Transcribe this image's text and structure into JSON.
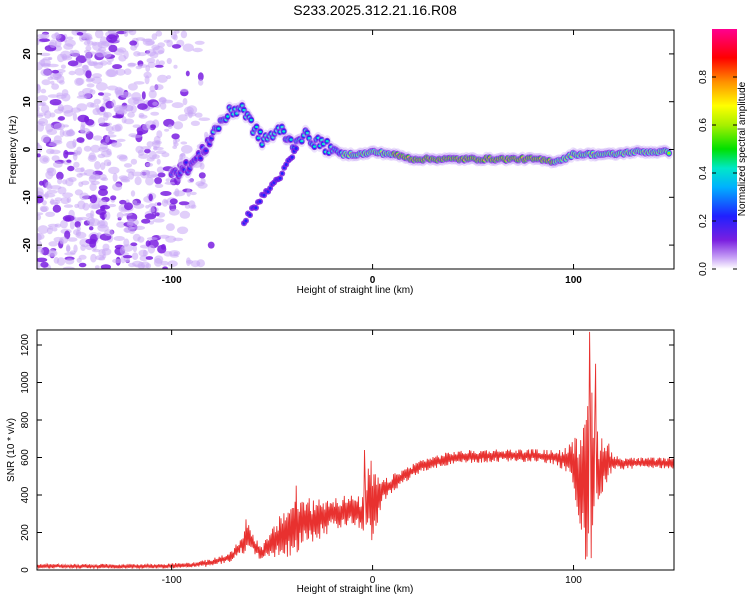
{
  "title": "S233.2025.312.21.16.R08",
  "colors": {
    "signal": "#e8312f",
    "scatter": "#8a2be2",
    "frame": "#000000"
  },
  "chart_data": [
    {
      "type": "heatmap",
      "title": "S233.2025.312.21.16.R08",
      "xlabel": "Height of straight line (km)",
      "ylabel": "Frequency (Hz)",
      "xlim": [
        -167,
        150
      ],
      "ylim": [
        -25,
        25
      ],
      "xticks": [
        -100,
        0,
        100
      ],
      "yticks": [
        -20,
        -10,
        0,
        10,
        20
      ],
      "colorbar": {
        "label": "Normalized spectral amplitude",
        "range": [
          0,
          1
        ],
        "ticks": [
          0.0,
          0.2,
          0.4,
          0.6,
          0.8
        ],
        "colormap": "hsv-rainbow (violet to magenta)"
      },
      "ridge": {
        "x": [
          -100,
          -95,
          -90,
          -85,
          -80,
          -75,
          -70,
          -65,
          -60,
          -55,
          -50,
          -45,
          -40,
          -35,
          -30,
          -25,
          -20,
          -15,
          -10,
          -5,
          0,
          10,
          20,
          30,
          40,
          50,
          60,
          70,
          80,
          90,
          95,
          100,
          105,
          110,
          120,
          130,
          140,
          148
        ],
        "y": [
          -4,
          -4.5,
          -3,
          -1,
          3,
          6,
          8,
          9,
          5,
          2,
          3,
          4,
          1,
          3,
          2,
          1,
          0,
          -1,
          -1,
          -1,
          -0.5,
          -1,
          -2,
          -2,
          -2,
          -2,
          -2,
          -2,
          -2,
          -2.5,
          -2,
          -1,
          -1,
          -1,
          -1,
          -0.5,
          -0.5,
          -0.5
        ]
      },
      "branch": {
        "x": [
          -64,
          -55,
          -45,
          -38
        ],
        "y": [
          -15,
          -10,
          -5,
          0
        ]
      }
    },
    {
      "type": "line",
      "xlabel": "Height of straight line (km)",
      "ylabel": "SNR (10 * v/v)",
      "xlim": [
        -167,
        150
      ],
      "ylim": [
        0,
        1280
      ],
      "xticks": [
        -100,
        0,
        100
      ],
      "yticks": [
        0,
        200,
        400,
        600,
        800,
        1000,
        1200
      ],
      "series": [
        {
          "name": "SNR",
          "x": [
            -167,
            -140,
            -110,
            -90,
            -80,
            -70,
            -65,
            -62,
            -58,
            -55,
            -45,
            -40,
            -35,
            -30,
            -20,
            -10,
            -5,
            -1,
            0,
            5,
            15,
            25,
            40,
            60,
            80,
            90,
            95,
            100,
            104,
            107,
            110,
            113,
            116,
            120,
            130,
            140,
            150
          ],
          "mean": [
            20,
            20,
            20,
            25,
            40,
            70,
            140,
            170,
            120,
            90,
            190,
            230,
            250,
            260,
            300,
            320,
            300,
            380,
            340,
            420,
            500,
            560,
            600,
            610,
            610,
            600,
            590,
            560,
            500,
            560,
            480,
            530,
            590,
            570,
            570,
            570,
            570
          ],
          "amp": [
            12,
            12,
            12,
            15,
            20,
            30,
            50,
            90,
            50,
            40,
            120,
            160,
            140,
            120,
            100,
            80,
            90,
            230,
            200,
            60,
            40,
            35,
            35,
            35,
            35,
            40,
            60,
            130,
            300,
            700,
            360,
            200,
            140,
            40,
            30,
            30,
            30
          ],
          "peaks": [
            {
              "x": -63,
              "y": 270
            },
            {
              "x": -38,
              "y": 450
            },
            {
              "x": -4,
              "y": 640
            },
            {
              "x": 108,
              "y": 1270
            },
            {
              "x": 111,
              "y": 1100
            }
          ]
        }
      ]
    }
  ]
}
